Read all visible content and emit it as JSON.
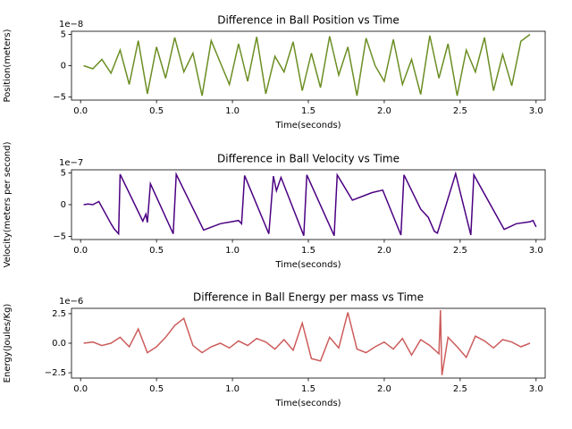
{
  "chart_data": [
    {
      "type": "line",
      "title": "Difference in Ball Position vs Time",
      "x_label": "Time(seconds)",
      "y_label": "Position(meters)",
      "offset_text": "1e−8",
      "color": "#6b8e23",
      "xlim": [
        -0.06,
        3.06
      ],
      "ylim": [
        -5.5,
        5.5
      ],
      "xticks": [
        {
          "value": 0,
          "label": "0.0"
        },
        0.5,
        {
          "value": 1,
          "label": "1.0"
        },
        1.5,
        {
          "value": 2,
          "label": "2.0"
        },
        2.5,
        {
          "value": 3,
          "label": "3.0"
        }
      ],
      "yticks": [
        5,
        0,
        {
          "value": -5,
          "label": "−5"
        }
      ],
      "x": [
        0.02,
        0.08,
        0.14,
        0.2,
        0.26,
        0.32,
        0.38,
        0.44,
        0.5,
        0.56,
        0.62,
        0.68,
        0.74,
        0.8,
        0.86,
        0.92,
        0.98,
        1.04,
        1.1,
        1.16,
        1.22,
        1.28,
        1.34,
        1.4,
        1.46,
        1.52,
        1.58,
        1.64,
        1.7,
        1.76,
        1.82,
        1.88,
        1.94,
        2.0,
        2.06,
        2.12,
        2.18,
        2.24,
        2.3,
        2.36,
        2.42,
        2.48,
        2.54,
        2.6,
        2.66,
        2.72,
        2.78,
        2.84,
        2.9,
        2.96
      ],
      "values": [
        0,
        -0.5,
        1,
        -1.2,
        2.5,
        -3,
        4,
        -4.5,
        3,
        -2,
        4.5,
        -1,
        2,
        -4.8,
        4,
        0.5,
        -3,
        3.5,
        -2.5,
        4.6,
        -4.5,
        1.5,
        -1,
        3.8,
        -4,
        2,
        -3.5,
        4.7,
        -1.5,
        3,
        -4.8,
        4.4,
        0,
        -2.5,
        4.2,
        -3,
        1,
        -4.6,
        4.8,
        -2,
        3.5,
        -4.8,
        2.5,
        -1,
        4.5,
        -4,
        1.8,
        -3.2,
        3.9,
        5
      ]
    },
    {
      "type": "line",
      "title": "Difference in Ball Velocity vs Time",
      "x_label": "Time(seconds)",
      "y_label": "Velocity(meters per second)",
      "offset_text": "1e−7",
      "color": "#4b0082",
      "xlim": [
        -0.06,
        3.06
      ],
      "ylim": [
        -5.5,
        5.5
      ],
      "xticks": [
        {
          "value": 0,
          "label": "0.0"
        },
        0.5,
        {
          "value": 1,
          "label": "1.0"
        },
        1.5,
        {
          "value": 2,
          "label": "2.0"
        },
        2.5,
        {
          "value": 3,
          "label": "3.0"
        }
      ],
      "yticks": [
        5,
        0,
        {
          "value": -5,
          "label": "−5"
        }
      ],
      "x": [
        0.02,
        0.05,
        0.08,
        0.12,
        0.2,
        0.22,
        0.25,
        0.26,
        0.41,
        0.43,
        0.44,
        0.46,
        0.61,
        0.63,
        0.81,
        0.92,
        1.04,
        1.06,
        1.08,
        1.24,
        1.27,
        1.29,
        1.32,
        1.47,
        1.49,
        1.67,
        1.69,
        1.79,
        1.92,
        1.99,
        2.11,
        2.13,
        2.24,
        2.29,
        2.33,
        2.35,
        2.47,
        2.57,
        2.59,
        2.79,
        2.87,
        2.96,
        2.98,
        3.0
      ],
      "values": [
        0,
        0.1,
        0,
        0.5,
        -3,
        -3.8,
        -4.6,
        4.8,
        -2.6,
        -1.5,
        -2.8,
        3.3,
        -4.6,
        4.8,
        -4,
        -3,
        -2.5,
        -3,
        4.6,
        -4.6,
        4.5,
        2.2,
        4.3,
        -4.9,
        4.7,
        -4.9,
        4.7,
        0.7,
        1.9,
        2.3,
        -4.8,
        4.7,
        -0.7,
        -2,
        -4.2,
        -4.5,
        4.9,
        -4.8,
        4.7,
        -3.9,
        -3,
        -2.7,
        -2.5,
        -3.5
      ]
    },
    {
      "type": "line",
      "title": "Difference in Ball Energy per mass vs Time",
      "x_label": "Time(seconds)",
      "y_label": "Energy(Joules/Kg)",
      "offset_text": "1e−6",
      "color": "#cd5c5c",
      "xlim": [
        -0.06,
        3.06
      ],
      "ylim": [
        -2.95,
        2.95
      ],
      "xticks": [
        {
          "value": 0,
          "label": "0.0"
        },
        0.5,
        {
          "value": 1,
          "label": "1.0"
        },
        1.5,
        {
          "value": 2,
          "label": "2.0"
        },
        2.5,
        {
          "value": 3,
          "label": "3.0"
        }
      ],
      "yticks": [
        2.5,
        {
          "value": 0,
          "label": "0.0"
        },
        {
          "value": -2.5,
          "label": "−2.5"
        }
      ],
      "x": [
        0.02,
        0.08,
        0.14,
        0.2,
        0.26,
        0.32,
        0.38,
        0.44,
        0.5,
        0.56,
        0.62,
        0.68,
        0.74,
        0.8,
        0.86,
        0.92,
        0.98,
        1.04,
        1.1,
        1.16,
        1.22,
        1.28,
        1.34,
        1.4,
        1.46,
        1.52,
        1.58,
        1.64,
        1.7,
        1.76,
        1.82,
        1.88,
        1.94,
        2.0,
        2.06,
        2.12,
        2.18,
        2.24,
        2.3,
        2.36,
        2.37,
        2.38,
        2.42,
        2.48,
        2.54,
        2.6,
        2.66,
        2.72,
        2.78,
        2.84,
        2.9,
        2.96
      ],
      "values": [
        0,
        0.1,
        -0.2,
        0,
        0.5,
        -0.3,
        1.2,
        -0.8,
        -0.3,
        0.5,
        1.5,
        2.1,
        -0.2,
        -0.8,
        -0.3,
        0,
        -0.4,
        0.2,
        -0.2,
        0.4,
        0.1,
        -0.5,
        0.3,
        -0.6,
        1.7,
        -1.3,
        -1.5,
        0.5,
        -0.4,
        2.6,
        -0.5,
        -0.8,
        -0.3,
        0.1,
        -0.5,
        0.4,
        -1.0,
        0.3,
        -0.2,
        -0.9,
        2.8,
        -2.7,
        0.5,
        -0.3,
        -1.2,
        0.6,
        0.2,
        -0.4,
        0.3,
        0.1,
        -0.3,
        0
      ]
    }
  ]
}
